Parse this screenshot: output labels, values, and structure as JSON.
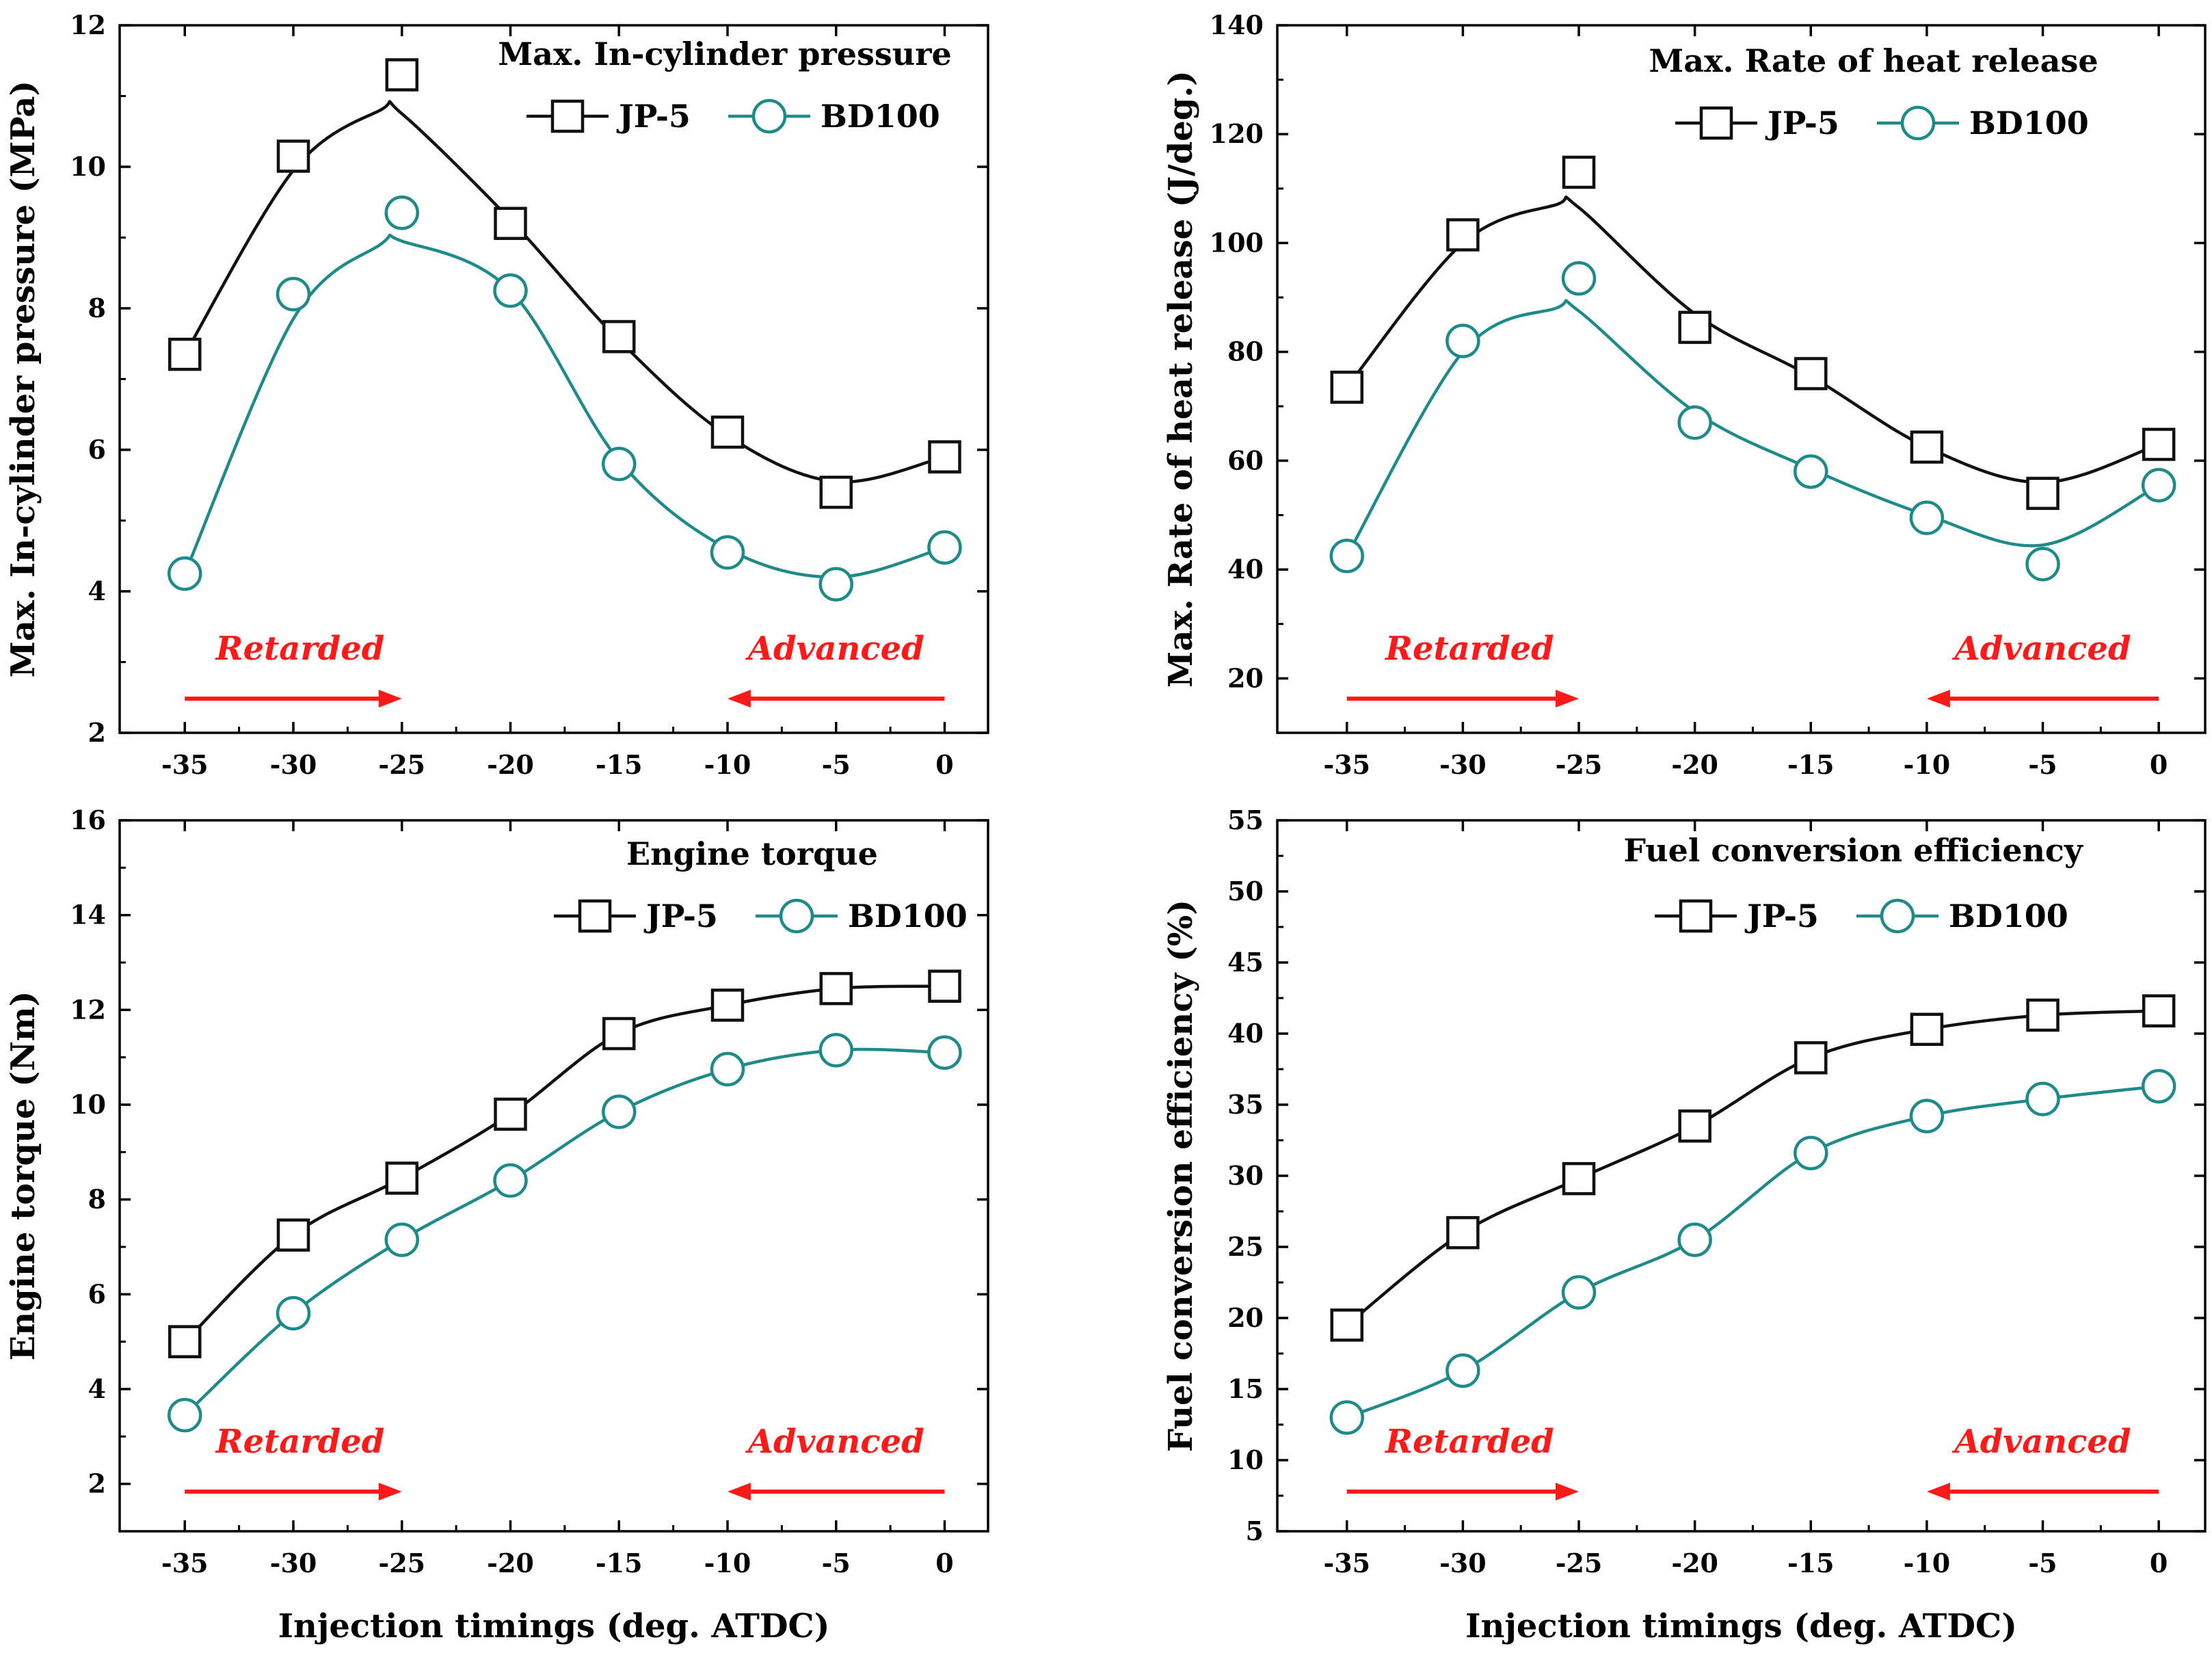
{
  "colors": {
    "jp5": "#111111",
    "bd100": "#1f8a8a",
    "annotation": "#ff1a1a",
    "axis": "#000000"
  },
  "chart_data": [
    {
      "type": "line",
      "title": "Max. In-cylinder pressure",
      "xlabel": "",
      "ylabel": "Max. In-cylinder pressure (MPa)",
      "x": [
        -35,
        -30,
        -25,
        -20,
        -15,
        -10,
        -5,
        0
      ],
      "xlim": [
        -38,
        2
      ],
      "ylim": [
        2,
        12
      ],
      "xticks": [
        -35,
        -30,
        -25,
        -20,
        -15,
        -10,
        -5,
        0
      ],
      "yticks": [
        2,
        4,
        6,
        8,
        10,
        12
      ],
      "series": [
        {
          "name": "JP-5",
          "marker": "square",
          "values": [
            7.35,
            10.15,
            11.3,
            9.2,
            7.6,
            6.25,
            5.4,
            5.9
          ],
          "curve": [
            [
              -35,
              7.35
            ],
            [
              -30,
              9.95
            ],
            [
              -26,
              10.8
            ],
            [
              -25,
              10.75
            ],
            [
              -20,
              9.25
            ],
            [
              -15,
              7.55
            ],
            [
              -10,
              6.2
            ],
            [
              -5,
              5.55
            ],
            [
              0,
              5.9
            ]
          ]
        },
        {
          "name": "BD100",
          "marker": "circle",
          "values": [
            4.25,
            8.2,
            9.35,
            8.25,
            5.8,
            4.55,
            4.1,
            4.62
          ],
          "curve": [
            [
              -35,
              4.25
            ],
            [
              -30,
              7.85
            ],
            [
              -26,
              8.9
            ],
            [
              -25,
              8.95
            ],
            [
              -20,
              8.25
            ],
            [
              -15,
              5.85
            ],
            [
              -10,
              4.6
            ],
            [
              -5,
              4.2
            ],
            [
              0,
              4.62
            ]
          ]
        }
      ],
      "annotations": [
        {
          "text": "Retarded",
          "direction": "right",
          "from": -35,
          "to": -25
        },
        {
          "text": "Advanced",
          "direction": "left",
          "from": 0,
          "to": -10
        }
      ],
      "legend": "top-right"
    },
    {
      "type": "line",
      "title": "Max. Rate of heat release",
      "xlabel": "",
      "ylabel": "Max. Rate of heat release (J/deg.)",
      "x": [
        -35,
        -30,
        -25,
        -20,
        -15,
        -10,
        -5,
        0
      ],
      "xlim": [
        -38,
        2
      ],
      "ylim": [
        10,
        140
      ],
      "xticks": [
        -35,
        -30,
        -25,
        -20,
        -15,
        -10,
        -5,
        0
      ],
      "yticks": [
        20,
        40,
        60,
        80,
        100,
        120,
        140
      ],
      "series": [
        {
          "name": "JP-5",
          "marker": "square",
          "values": [
            73.5,
            101.5,
            113,
            84.5,
            76,
            62.5,
            54,
            63
          ],
          "curve": [
            [
              -35,
              73.5
            ],
            [
              -30,
              100
            ],
            [
              -26,
              107
            ],
            [
              -25,
              106.5
            ],
            [
              -20,
              87
            ],
            [
              -15,
              75.5
            ],
            [
              -10,
              62.5
            ],
            [
              -5,
              56
            ],
            [
              0,
              63
            ]
          ]
        },
        {
          "name": "BD100",
          "marker": "circle",
          "values": [
            42.5,
            82,
            93.5,
            67,
            58,
            49.5,
            41,
            55.5
          ],
          "curve": [
            [
              -35,
              42.5
            ],
            [
              -30,
              80
            ],
            [
              -26,
              88
            ],
            [
              -25,
              87.5
            ],
            [
              -20,
              69
            ],
            [
              -15,
              58.5
            ],
            [
              -10,
              50
            ],
            [
              -5,
              44.5
            ],
            [
              0,
              55.5
            ]
          ]
        }
      ],
      "annotations": [
        {
          "text": "Retarded",
          "direction": "right",
          "from": -35,
          "to": -25
        },
        {
          "text": "Advanced",
          "direction": "left",
          "from": 0,
          "to": -10
        }
      ],
      "legend": "top-right"
    },
    {
      "type": "line",
      "title": "Engine torque",
      "xlabel": "Injection timings (deg. ATDC)",
      "ylabel": "Engine torque (Nm)",
      "x": [
        -35,
        -30,
        -25,
        -20,
        -15,
        -10,
        -5,
        0
      ],
      "xlim": [
        -38,
        2
      ],
      "ylim": [
        1,
        16
      ],
      "xticks": [
        -35,
        -30,
        -25,
        -20,
        -15,
        -10,
        -5,
        0
      ],
      "yticks": [
        2,
        4,
        6,
        8,
        10,
        12,
        14,
        16
      ],
      "series": [
        {
          "name": "JP-5",
          "marker": "square",
          "values": [
            5.0,
            7.25,
            8.45,
            9.8,
            11.5,
            12.1,
            12.45,
            12.5
          ],
          "curve": null
        },
        {
          "name": "BD100",
          "marker": "circle",
          "values": [
            3.45,
            5.6,
            7.15,
            8.4,
            9.85,
            10.75,
            11.15,
            11.1
          ],
          "curve": null
        }
      ],
      "annotations": [
        {
          "text": "Retarded",
          "direction": "right",
          "from": -35,
          "to": -25
        },
        {
          "text": "Advanced",
          "direction": "left",
          "from": 0,
          "to": -10
        }
      ],
      "legend": "top-right"
    },
    {
      "type": "line",
      "title": "Fuel conversion efficiency",
      "xlabel": "Injection timings (deg. ATDC)",
      "ylabel": "Fuel conversion efficiency (%)",
      "x": [
        -35,
        -30,
        -25,
        -20,
        -15,
        -10,
        -5,
        0
      ],
      "xlim": [
        -38,
        2
      ],
      "ylim": [
        5,
        55
      ],
      "xticks": [
        -35,
        -30,
        -25,
        -20,
        -15,
        -10,
        -5,
        0
      ],
      "yticks": [
        5,
        10,
        15,
        20,
        25,
        30,
        35,
        40,
        45,
        50,
        55
      ],
      "series": [
        {
          "name": "JP-5",
          "marker": "square",
          "values": [
            19.5,
            26.0,
            29.8,
            33.5,
            38.3,
            40.3,
            41.3,
            41.6
          ],
          "curve": null
        },
        {
          "name": "BD100",
          "marker": "circle",
          "values": [
            13.0,
            16.3,
            21.8,
            25.5,
            31.6,
            34.2,
            35.4,
            36.3
          ],
          "curve": null
        }
      ],
      "annotations": [
        {
          "text": "Retarded",
          "direction": "right",
          "from": -35,
          "to": -25
        },
        {
          "text": "Advanced",
          "direction": "left",
          "from": 0,
          "to": -10
        }
      ],
      "legend": "top-right"
    }
  ]
}
